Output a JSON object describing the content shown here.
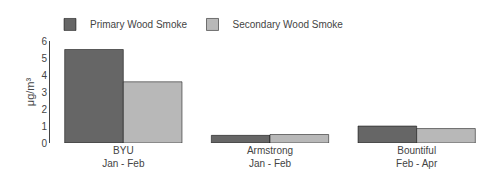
{
  "chart_data": {
    "type": "bar",
    "categories": [
      "BYU\nJan - Feb",
      "Armstrong\nJan - Feb",
      "Bountiful\nFeb - Apr"
    ],
    "series": [
      {
        "name": "Primary Wood Smoke",
        "color": "#666666",
        "values": [
          5.5,
          0.45,
          1.0
        ]
      },
      {
        "name": "Secondary Wood Smoke",
        "color": "#b8b8b8",
        "values": [
          3.6,
          0.5,
          0.85
        ]
      }
    ],
    "ylabel": "μg/m³",
    "ylim": [
      0,
      6
    ],
    "yticks": [
      0,
      1,
      2,
      3,
      4,
      5,
      6
    ],
    "grid": false,
    "legend": "upper left"
  }
}
